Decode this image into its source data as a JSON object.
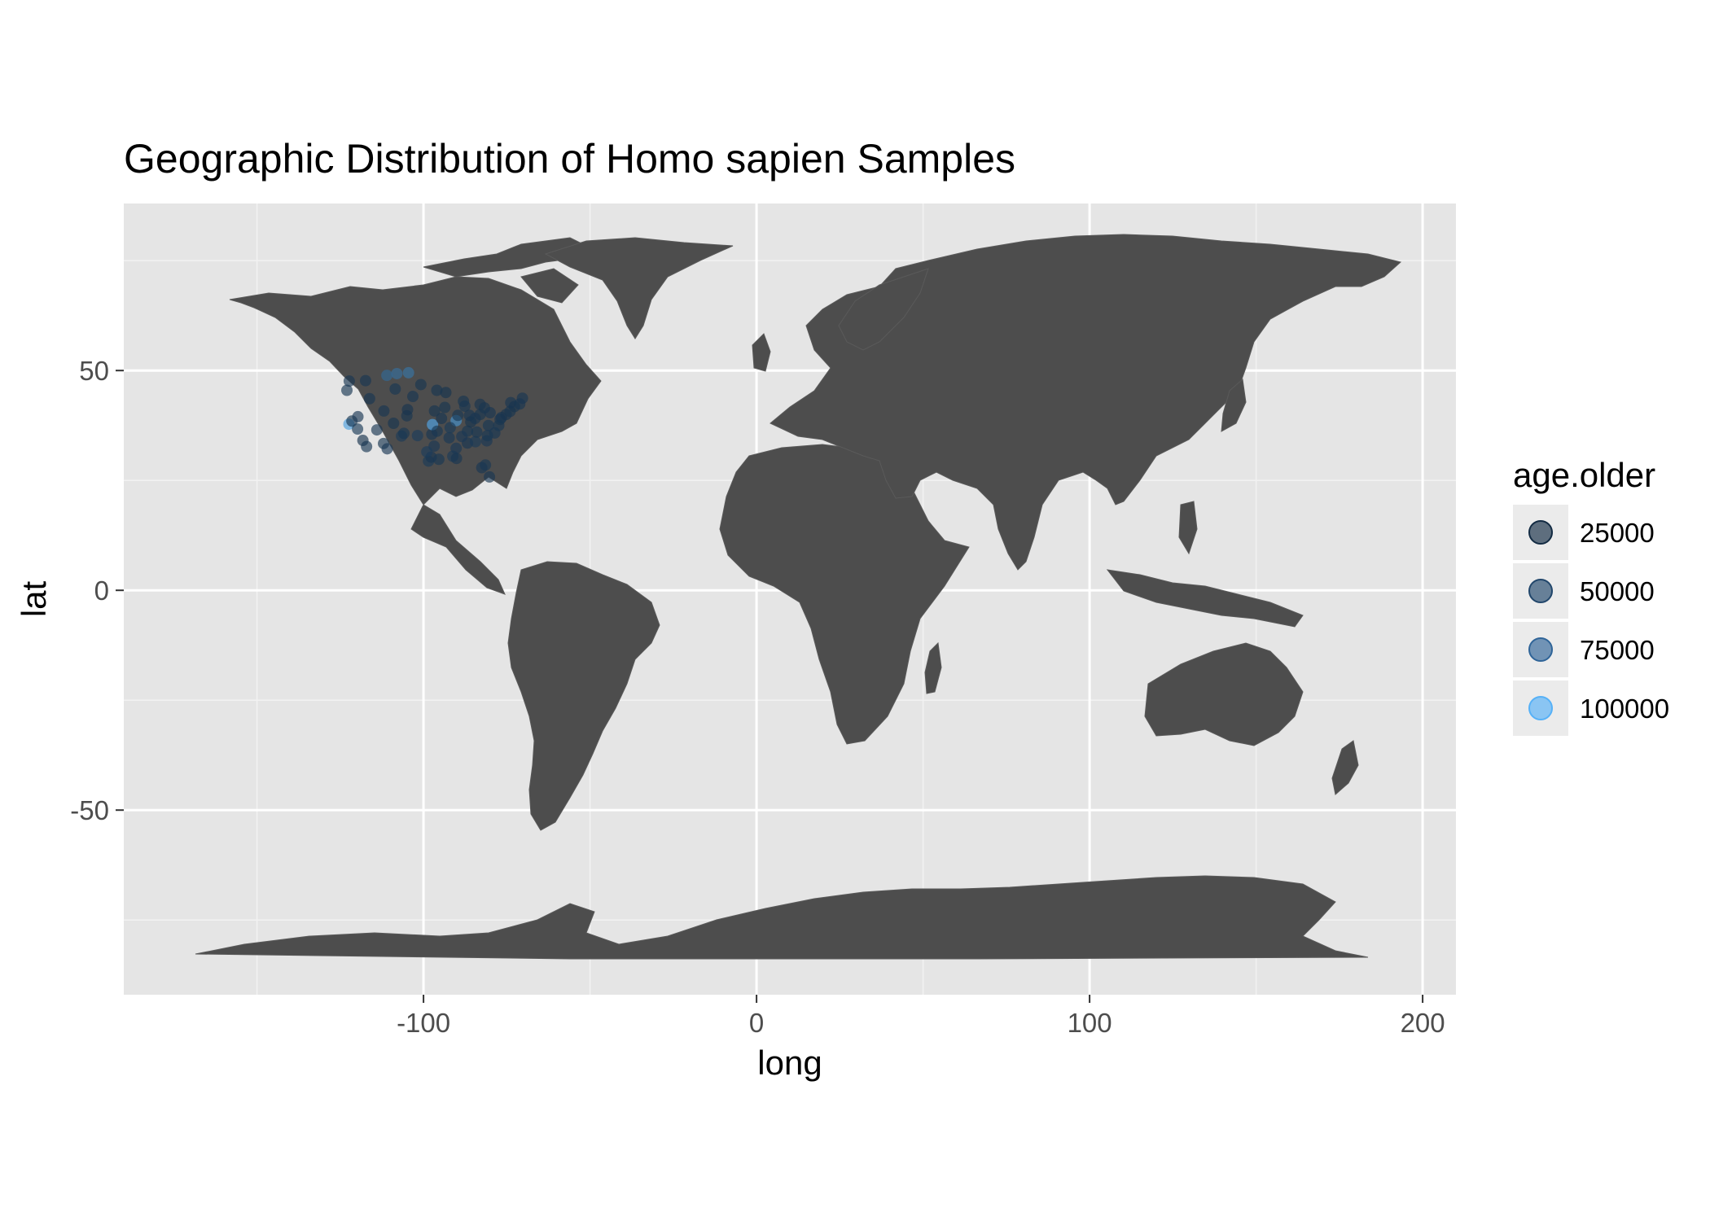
{
  "chart_data": {
    "type": "scatter",
    "title": "Geographic Distribution of Homo sapien Samples",
    "xlabel": "long",
    "ylabel": "lat",
    "xlim": [
      -190,
      210
    ],
    "ylim": [
      -92,
      88
    ],
    "x_ticks": [
      -100,
      0,
      100,
      200
    ],
    "y_ticks": [
      50,
      0,
      -50
    ],
    "x_tick_labels": [
      "-100",
      "0",
      "100",
      "200"
    ],
    "y_tick_labels": [
      "50",
      "0",
      "-50"
    ],
    "grid": true,
    "background": "#e5e5e5",
    "land_color": "#4d4d4d",
    "legend": {
      "title": "age.older",
      "placement": "right",
      "entries": [
        {
          "label": "25000",
          "value": 25000,
          "color": "#132b43"
        },
        {
          "label": "50000",
          "value": 50000,
          "color": "#21466b"
        },
        {
          "label": "75000",
          "value": 75000,
          "color": "#2f6498"
        },
        {
          "label": "100000",
          "value": 100000,
          "color": "#56b1f7"
        }
      ]
    },
    "color_scale": {
      "low": "#132B43",
      "high": "#56B1F7",
      "min": 0,
      "max": 110000
    },
    "series": [
      {
        "points": [
          [
            -122.4,
            37.8,
            95000
          ],
          [
            -121.5,
            38.5,
            8000
          ],
          [
            -119.8,
            36.7,
            12000
          ],
          [
            -118.2,
            34.1,
            6000
          ],
          [
            -117.1,
            32.7,
            10000
          ],
          [
            -116.2,
            43.6,
            9000
          ],
          [
            -112.0,
            33.4,
            7000
          ],
          [
            -111.9,
            40.8,
            8500
          ],
          [
            -110.9,
            32.2,
            11000
          ],
          [
            -108.5,
            45.8,
            9500
          ],
          [
            -106.6,
            35.1,
            13000
          ],
          [
            -105.9,
            35.7,
            10000
          ],
          [
            -105.0,
            39.7,
            8000
          ],
          [
            -104.8,
            41.1,
            7500
          ],
          [
            -103.2,
            44.1,
            9000
          ],
          [
            -101.8,
            35.2,
            14000
          ],
          [
            -100.8,
            46.8,
            8000
          ],
          [
            -98.5,
            29.4,
            12000
          ],
          [
            -97.7,
            30.3,
            9000
          ],
          [
            -97.5,
            35.5,
            8500
          ],
          [
            -97.3,
            37.7,
            100000
          ],
          [
            -96.8,
            32.8,
            11000
          ],
          [
            -96.7,
            40.8,
            8000
          ],
          [
            -95.4,
            29.8,
            10000
          ],
          [
            -95.9,
            36.2,
            9500
          ],
          [
            -94.6,
            39.1,
            9000
          ],
          [
            -93.6,
            41.6,
            8000
          ],
          [
            -93.3,
            45.0,
            7000
          ],
          [
            -92.3,
            34.7,
            10500
          ],
          [
            -91.2,
            30.5,
            13000
          ],
          [
            -90.2,
            38.6,
            85000
          ],
          [
            -90.1,
            30.0,
            9000
          ],
          [
            -90.2,
            32.3,
            11000
          ],
          [
            -89.7,
            39.8,
            10000
          ],
          [
            -88.0,
            43.0,
            8000
          ],
          [
            -87.6,
            41.9,
            9500
          ],
          [
            -86.8,
            36.2,
            10000
          ],
          [
            -86.8,
            33.5,
            9000
          ],
          [
            -86.2,
            39.8,
            8500
          ],
          [
            -85.8,
            38.3,
            7000
          ],
          [
            -84.5,
            39.1,
            9000
          ],
          [
            -84.4,
            33.8,
            12000
          ],
          [
            -83.0,
            40.0,
            8000
          ],
          [
            -83.0,
            42.3,
            7500
          ],
          [
            -82.5,
            27.9,
            9000
          ],
          [
            -81.7,
            41.5,
            8000
          ],
          [
            -81.4,
            28.5,
            10000
          ],
          [
            -81.0,
            34.0,
            11000
          ],
          [
            -80.2,
            25.8,
            9000
          ],
          [
            -80.0,
            40.4,
            8500
          ],
          [
            -80.8,
            35.2,
            10000
          ],
          [
            -78.6,
            35.8,
            9500
          ],
          [
            -77.4,
            37.5,
            10000
          ],
          [
            -77.0,
            38.9,
            8000
          ],
          [
            -76.6,
            39.3,
            9000
          ],
          [
            -75.2,
            40.0,
            7500
          ],
          [
            -74.0,
            40.7,
            8000
          ],
          [
            -73.8,
            42.7,
            9000
          ],
          [
            -72.7,
            41.8,
            7000
          ],
          [
            -71.1,
            42.4,
            8500
          ],
          [
            -70.3,
            43.7,
            9000
          ],
          [
            -104.5,
            49.5,
            60000
          ],
          [
            -108.0,
            49.3,
            55000
          ],
          [
            -111.0,
            48.9,
            50000
          ],
          [
            -99.0,
            31.5,
            14000
          ],
          [
            -92.0,
            37.0,
            12000
          ],
          [
            -88.5,
            35.0,
            11000
          ],
          [
            -84.0,
            36.0,
            10000
          ],
          [
            -80.5,
            37.5,
            9500
          ],
          [
            -109.0,
            38.0,
            8000
          ],
          [
            -114.0,
            36.5,
            9000
          ],
          [
            -123.0,
            45.5,
            10000
          ],
          [
            -122.3,
            47.6,
            8500
          ],
          [
            -117.4,
            47.7,
            9000
          ],
          [
            -119.7,
            39.5,
            11000
          ],
          [
            -96.0,
            45.5,
            8000
          ]
        ]
      }
    ]
  }
}
